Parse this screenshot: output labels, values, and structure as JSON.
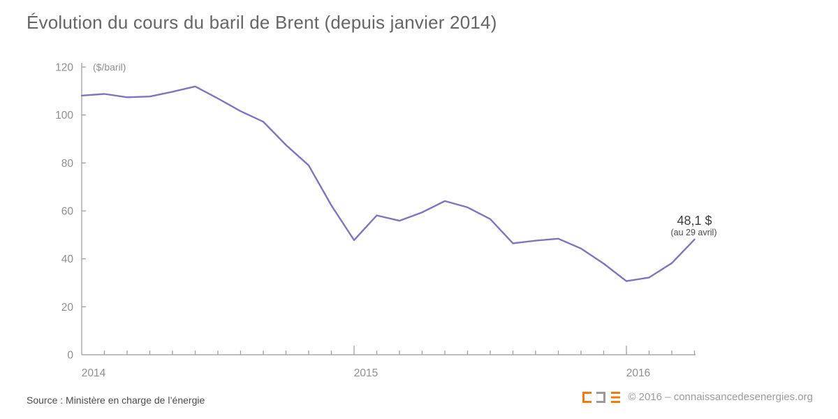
{
  "header": {
    "title": "Évolution du cours du baril de Brent (depuis janvier 2014)"
  },
  "chart_data": {
    "type": "line",
    "title": "Évolution du cours du baril de Brent (depuis janvier 2014)",
    "unit_label": "($/baril)",
    "xlabel": "",
    "ylabel": "($/baril)",
    "months": [
      "2014-01",
      "2014-02",
      "2014-03",
      "2014-04",
      "2014-05",
      "2014-06",
      "2014-07",
      "2014-08",
      "2014-09",
      "2014-10",
      "2014-11",
      "2014-12",
      "2015-01",
      "2015-02",
      "2015-03",
      "2015-04",
      "2015-05",
      "2015-06",
      "2015-07",
      "2015-08",
      "2015-09",
      "2015-10",
      "2015-11",
      "2015-12",
      "2016-01",
      "2016-02",
      "2016-03",
      "2016-04-29"
    ],
    "values": [
      108.1,
      108.8,
      107.4,
      107.7,
      109.7,
      111.9,
      106.9,
      101.6,
      97.2,
      87.5,
      79.0,
      62.3,
      47.8,
      58.1,
      55.9,
      59.4,
      64.1,
      61.5,
      56.6,
      46.5,
      47.6,
      48.4,
      44.3,
      38.0,
      30.7,
      32.2,
      38.2,
      48.1
    ],
    "ylim": [
      0,
      120
    ],
    "y_ticks": [
      0,
      20,
      40,
      60,
      80,
      100,
      120
    ],
    "year_labels": [
      {
        "label": "2014",
        "month_index": 0
      },
      {
        "label": "2015",
        "month_index": 12
      },
      {
        "label": "2016",
        "month_index": 24
      }
    ],
    "major_tick_indices": [
      12,
      24
    ],
    "grid": false,
    "legend": false,
    "annotation": {
      "value_label": "48,1 $",
      "date_label": "(au 29 avril)",
      "value_color": "#3d3d3d",
      "date_color": "#4a4a4a"
    },
    "line_color": "#7d76be",
    "axis_color": "#9a9a9a",
    "tick_label_color": "#8f8f8f"
  },
  "footer": {
    "source": "Source : Ministère en charge de l’énergie",
    "copyright": "© 2016 – connaissancedesenergies.org",
    "logo_name": "connaissance-des-energies",
    "logo_colors": {
      "orange": "#ee7d11",
      "gray": "#9a9a9a"
    }
  }
}
